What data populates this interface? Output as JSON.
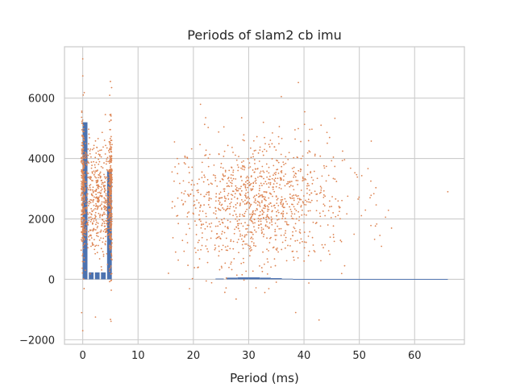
{
  "chart_data": {
    "type": "bar+scatter",
    "title": "Periods of slam2 cb imu",
    "xlabel": "Period (ms)",
    "ylabel": "",
    "xlim": [
      -3.3,
      69
    ],
    "ylim": [
      -2150,
      7700
    ],
    "grid": true,
    "legend": "none",
    "x_ticks": [
      0,
      10,
      20,
      30,
      40,
      50,
      60
    ],
    "y_ticks": [
      -2000,
      0,
      2000,
      4000,
      6000
    ],
    "colors": {
      "histogram": "#4c72b0",
      "scatter": "#dd8452",
      "grid": "#cccccc",
      "axes_edge": "#cccccc"
    },
    "series": [
      {
        "kind": "histogram",
        "bars": [
          {
            "x0": 0.0,
            "x1": 0.85,
            "value": 5200
          },
          {
            "x0": 1.1,
            "x1": 1.95,
            "value": 230
          },
          {
            "x0": 2.2,
            "x1": 3.05,
            "value": 230
          },
          {
            "x0": 3.3,
            "x1": 4.15,
            "value": 230
          },
          {
            "x0": 4.4,
            "x1": 5.25,
            "value": 3600
          },
          {
            "x0": 24.0,
            "x1": 25.5,
            "value": 25
          },
          {
            "x0": 26.0,
            "x1": 28.0,
            "value": 55
          },
          {
            "x0": 28.0,
            "x1": 30.0,
            "value": 65
          },
          {
            "x0": 30.0,
            "x1": 32.0,
            "value": 65
          },
          {
            "x0": 32.0,
            "x1": 34.0,
            "value": 55
          },
          {
            "x0": 34.0,
            "x1": 36.0,
            "value": 40
          },
          {
            "x0": 36.0,
            "x1": 38.0,
            "value": 20
          },
          {
            "x0": 38.0,
            "x1": 66.0,
            "value": 8
          }
        ]
      },
      {
        "kind": "scatter",
        "description_groups": [
          {
            "x_range": [
              -0.3,
              0.3
            ],
            "y_mean": 2800,
            "y_spread": 1300,
            "count": 240
          },
          {
            "x_range": [
              0.0,
              5.2
            ],
            "y_mean": 2600,
            "y_spread": 900,
            "count": 520
          },
          {
            "x_range": [
              4.8,
              5.3
            ],
            "y_mean": 2900,
            "y_spread": 1300,
            "count": 240
          },
          {
            "x_range": [
              16,
              66
            ],
            "y_mean": 2500,
            "y_spread": 1050,
            "count": 1100
          }
        ],
        "extremes": [
          {
            "x": 0.0,
            "y": 7300
          },
          {
            "x": 0.0,
            "y": -1700
          },
          {
            "x": 2.3,
            "y": -1250
          },
          {
            "x": 5.0,
            "y": 6550
          },
          {
            "x": 35.9,
            "y": 6050
          },
          {
            "x": 38.5,
            "y": -1100
          },
          {
            "x": 66.0,
            "y": 2900
          },
          {
            "x": 15.5,
            "y": 200
          }
        ]
      }
    ]
  }
}
